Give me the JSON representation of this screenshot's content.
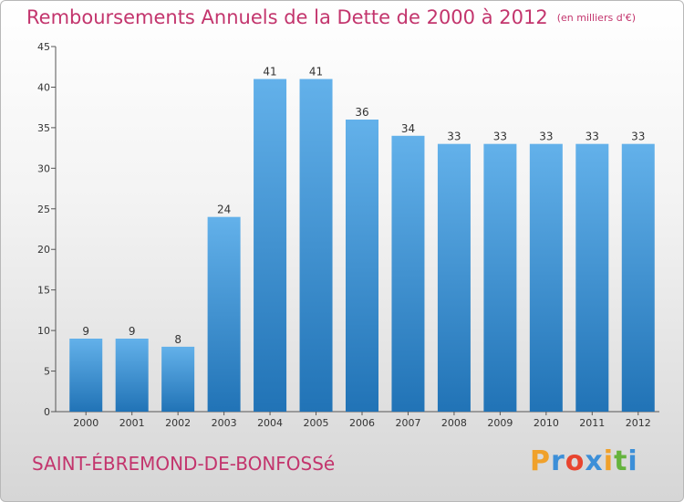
{
  "header": {
    "title": "Remboursements Annuels de la Dette de 2000 à 2012",
    "unit": "(en milliers d'€)"
  },
  "footer": {
    "commune": "SAINT-ÉBREMOND-DE-BONFOSSé",
    "logo_letters": [
      "P",
      "r",
      "o",
      "x",
      "i",
      "t",
      "i"
    ]
  },
  "colors": {
    "title": "#c3356d",
    "bar_top": "#63b1ea",
    "bar_bottom": "#2173b6",
    "logo": [
      "#f0a12b",
      "#3c8fd8",
      "#e8452f",
      "#3c8fd8",
      "#f0a12b",
      "#65b33d",
      "#3c8fd8"
    ]
  },
  "chart_data": {
    "type": "bar",
    "title": "Remboursements Annuels de la Dette de 2000 à 2012",
    "categories": [
      "2000",
      "2001",
      "2002",
      "2003",
      "2004",
      "2005",
      "2006",
      "2007",
      "2008",
      "2009",
      "2010",
      "2011",
      "2012"
    ],
    "values": [
      9,
      9,
      8,
      24,
      41,
      41,
      36,
      34,
      33,
      33,
      33,
      33,
      33
    ],
    "data_labels": [
      "9",
      "9",
      "8",
      "24",
      "41",
      "41",
      "36",
      "34",
      "33",
      "33",
      "33",
      "33",
      "33"
    ],
    "ylim": [
      0,
      45
    ],
    "yticks": [
      "0",
      "5",
      "10",
      "15",
      "20",
      "25",
      "30",
      "35",
      "40",
      "45"
    ],
    "grid": false,
    "legend": "none"
  }
}
